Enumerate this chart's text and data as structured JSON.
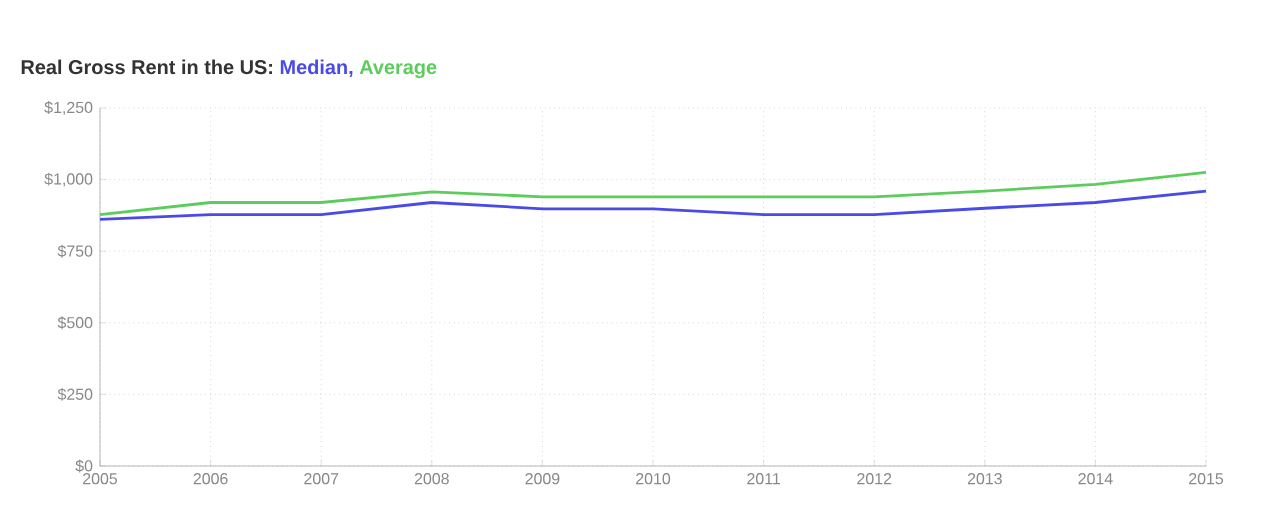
{
  "chart_data": {
    "type": "line",
    "title": "Real Gross Rent in the US:",
    "x": [
      2005,
      2006,
      2007,
      2008,
      2009,
      2010,
      2011,
      2012,
      2013,
      2014,
      2015
    ],
    "series": [
      {
        "name": "Median,",
        "color": "#4a4ae8",
        "values": [
          861,
          878,
          878,
          920,
          898,
          898,
          878,
          878,
          900,
          920,
          960
        ]
      },
      {
        "name": "Average",
        "color": "#5ccc5c",
        "values": [
          878,
          920,
          920,
          957,
          940,
          940,
          940,
          940,
          960,
          983,
          1025
        ]
      }
    ],
    "xlim": [
      2005,
      2015
    ],
    "xticks": [
      2005,
      2006,
      2007,
      2008,
      2009,
      2010,
      2011,
      2012,
      2013,
      2014,
      2015
    ],
    "ylim": [
      0,
      1250
    ],
    "yticks": [
      {
        "value": 0,
        "label": "$0"
      },
      {
        "value": 250,
        "label": "$250"
      },
      {
        "value": 500,
        "label": "$500"
      },
      {
        "value": 750,
        "label": "$750"
      },
      {
        "value": 1000,
        "label": "$1,000"
      },
      {
        "value": 1250,
        "label": "$1,250"
      }
    ],
    "grid": true,
    "legend": "top",
    "marker": "none",
    "line_style": "solid"
  }
}
